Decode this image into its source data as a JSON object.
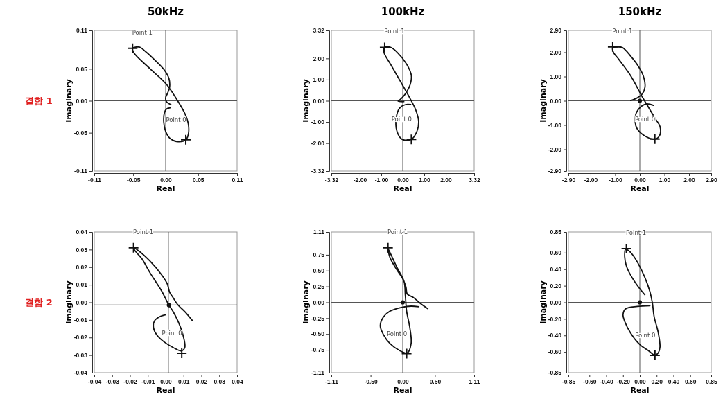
{
  "chart_data": [
    {
      "type": "line",
      "title": "50kHz",
      "xlabel": "Real",
      "ylabel": "Imaginary",
      "annotations": [
        "결함 1",
        {
          "text": "Point 1",
          "x": -0.051,
          "y": 0.082
        },
        {
          "text": "Point 0",
          "x": 0.031,
          "y": -0.061
        }
      ],
      "xlim": [
        -0.11,
        0.11
      ],
      "ylim": [
        -0.11,
        0.11
      ],
      "xticks": [
        -0.11,
        -0.05,
        {
          "value": 0,
          "label": "0.00"
        },
        0.05,
        0.11
      ],
      "yticks": [
        -0.11,
        -0.05,
        {
          "value": 0,
          "label": "0.00"
        },
        0.05,
        0.11
      ],
      "ref_lines": [
        {
          "axis": "x",
          "value": 0,
          "color": "#555555"
        },
        {
          "axis": "y",
          "value": 0,
          "color": "#555555"
        }
      ],
      "series": [
        {
          "type": "line",
          "color": "#111111",
          "x": [
            0.008,
            0.001,
            0.0,
            0.003,
            0.006,
            0.005,
            -0.002,
            -0.016,
            -0.031,
            -0.041,
            -0.051,
            -0.049,
            -0.024,
            0.001,
            0.019,
            0.03,
            0.035,
            0.035,
            0.031,
            0.019,
            0.007,
            0.0,
            -0.003,
            -0.002,
            0.001,
            0.007
          ],
          "values": [
            -0.006,
            -0.001,
            0.005,
            0.012,
            0.021,
            0.035,
            0.048,
            0.063,
            0.077,
            0.084,
            0.082,
            0.075,
            0.05,
            0.026,
            -0.001,
            -0.021,
            -0.037,
            -0.052,
            -0.061,
            -0.064,
            -0.059,
            -0.048,
            -0.033,
            -0.019,
            -0.013,
            -0.011
          ]
        },
        {
          "type": "scatter",
          "marker": "cross",
          "color": "#111111",
          "x": [
            -0.051,
            0.031
          ],
          "values": [
            0.082,
            -0.061
          ]
        }
      ]
    },
    {
      "type": "line",
      "title": "100kHz",
      "xlabel": "Real",
      "ylabel": "Imaginary",
      "annotations": [
        {
          "text": "Point 1",
          "x": -0.84,
          "y": 2.52
        },
        {
          "text": "Point 0",
          "x": 0.4,
          "y": -1.82
        }
      ],
      "xlim": [
        -3.32,
        3.32
      ],
      "ylim": [
        -3.32,
        3.32
      ],
      "xticks": [
        -3.32,
        {
          "value": -2,
          "label": "-2.00"
        },
        {
          "value": -1,
          "label": "-1.00"
        },
        {
          "value": 0,
          "label": "0.00"
        },
        {
          "value": 1,
          "label": "1.00"
        },
        {
          "value": 2,
          "label": "2.00"
        },
        3.32
      ],
      "yticks": [
        -3.32,
        {
          "value": -2,
          "label": "-2.00"
        },
        {
          "value": -1,
          "label": "-1.00"
        },
        {
          "value": 0,
          "label": "0.00"
        },
        {
          "value": 1,
          "label": "1.00"
        },
        {
          "value": 2,
          "label": "2.00"
        },
        3.32
      ],
      "ref_lines": [
        {
          "axis": "x",
          "value": 0,
          "color": "#555555"
        },
        {
          "axis": "y",
          "value": 0,
          "color": "#555555"
        }
      ],
      "series": [
        {
          "type": "line",
          "color": "#111111",
          "x": [
            0.37,
            0.13,
            -0.14,
            -0.3,
            -0.27,
            -0.03,
            0.4,
            0.66,
            0.74,
            0.61,
            0.29,
            -0.14,
            -0.57,
            -0.87,
            -0.84,
            -0.57,
            -0.25,
            0.18,
            0.4,
            0.34,
            0.18,
            0.02,
            -0.14,
            -0.22,
            0.05
          ],
          "values": [
            -0.18,
            -0.18,
            -0.34,
            -0.78,
            -1.44,
            -1.82,
            -1.82,
            -1.44,
            -1.0,
            -0.45,
            0.2,
            0.97,
            1.73,
            2.28,
            2.52,
            2.52,
            2.28,
            1.73,
            1.19,
            0.75,
            0.42,
            0.2,
            0.04,
            -0.02,
            -0.04
          ]
        },
        {
          "type": "scatter",
          "marker": "cross",
          "color": "#111111",
          "x": [
            -0.84,
            0.4
          ],
          "values": [
            2.52,
            -1.82
          ]
        }
      ]
    },
    {
      "type": "line",
      "title": "150kHz",
      "xlabel": "Real",
      "ylabel": "Imaginary",
      "annotations": [
        {
          "text": "Point 1",
          "x": -1.1,
          "y": 2.22
        },
        {
          "text": "Point 0",
          "x": 0.61,
          "y": -1.58
        }
      ],
      "xlim": [
        -2.9,
        2.9
      ],
      "ylim": [
        -2.9,
        2.9
      ],
      "xticks": [
        {
          "value": -2.9,
          "label": "-2.90"
        },
        {
          "value": -2,
          "label": "-2.00"
        },
        {
          "value": -1,
          "label": "-1.00"
        },
        {
          "value": 0,
          "label": "0.00"
        },
        {
          "value": 1,
          "label": "1.00"
        },
        {
          "value": 2,
          "label": "2.00"
        },
        {
          "value": 2.9,
          "label": "2.90"
        }
      ],
      "yticks": [
        {
          "value": -2.9,
          "label": "-2.90"
        },
        {
          "value": -2,
          "label": "-2.00"
        },
        {
          "value": -1,
          "label": "-1.00"
        },
        {
          "value": 0,
          "label": "0.00"
        },
        {
          "value": 1,
          "label": "1.00"
        },
        {
          "value": 2,
          "label": "2.00"
        },
        {
          "value": 2.9,
          "label": "2.90"
        }
      ],
      "ref_lines": [
        {
          "axis": "x",
          "value": 0,
          "color": "#555555"
        },
        {
          "axis": "y",
          "value": 0,
          "color": "#555555"
        }
      ],
      "series": [
        {
          "type": "line",
          "color": "#111111",
          "x": [
            0.56,
            0.28,
            0.07,
            -0.14,
            -0.19,
            -0.11,
            0.19,
            0.61,
            0.8,
            0.82,
            0.65,
            0.37,
            0.09,
            -0.37,
            -0.84,
            -1.08,
            -1.1,
            -0.94,
            -0.7,
            -0.37,
            -0.05,
            0.14,
            0.21,
            0.09,
            -0.09,
            -0.37
          ],
          "values": [
            -0.19,
            -0.13,
            -0.22,
            -0.49,
            -0.87,
            -1.15,
            -1.44,
            -1.58,
            -1.44,
            -1.06,
            -0.77,
            -0.3,
            0.18,
            1.03,
            1.69,
            2.02,
            2.19,
            2.22,
            2.19,
            1.84,
            1.41,
            1.03,
            0.56,
            0.27,
            0.13,
            0.01
          ]
        },
        {
          "type": "scatter",
          "marker": "cross",
          "color": "#111111",
          "x": [
            -1.1,
            0.61
          ],
          "values": [
            2.22,
            -1.58
          ]
        },
        {
          "type": "scatter",
          "marker": "circle",
          "color": "#111111",
          "x": [
            0
          ],
          "values": [
            0
          ]
        }
      ]
    },
    {
      "type": "line",
      "xlabel": "Real",
      "ylabel": "Imaginary",
      "annotations": [
        "결함 2",
        {
          "text": "Point 1",
          "x": -0.018,
          "y": 0.031
        },
        {
          "text": "Point 0",
          "x": 0.009,
          "y": -0.029
        }
      ],
      "xlim": [
        -0.04,
        0.04
      ],
      "ylim": [
        -0.04,
        0.04
      ],
      "xticks": [
        -0.04,
        -0.03,
        -0.02,
        -0.01,
        {
          "value": 0,
          "label": "0.00"
        },
        0.01,
        0.02,
        0.03,
        0.04
      ],
      "yticks": [
        -0.04,
        -0.03,
        -0.02,
        -0.01,
        {
          "value": 0,
          "label": "0.00"
        },
        0.01,
        0.02,
        0.03,
        0.04
      ],
      "ref_lines": [
        {
          "axis": "x",
          "value": 0.0015,
          "color": "#333333"
        },
        {
          "axis": "y",
          "value": -0.0015,
          "color": "#333333"
        }
      ],
      "series": [
        {
          "type": "line",
          "color": "#111111",
          "x": [
            0.0,
            -0.003,
            -0.0063,
            -0.0068,
            -0.005,
            -0.001,
            0.0042,
            0.0087,
            0.0107,
            0.01,
            0.0074,
            0.0042,
            0.0018,
            -0.0023,
            -0.0089,
            -0.0134,
            -0.0173,
            -0.0177,
            -0.0154,
            -0.0089,
            -0.0023,
            0.0009,
            0.0022,
            0.0042,
            0.0068,
            0.0107,
            0.0149
          ],
          "values": [
            -0.007,
            -0.008,
            -0.0106,
            -0.0145,
            -0.0185,
            -0.0224,
            -0.0257,
            -0.0276,
            -0.0257,
            -0.0198,
            -0.0119,
            -0.0053,
            -0.0016,
            0.0065,
            0.017,
            0.0249,
            0.0295,
            0.0308,
            0.0295,
            0.0236,
            0.0157,
            0.0105,
            0.0058,
            0.0026,
            -0.0014,
            -0.0053,
            -0.0103
          ]
        },
        {
          "type": "scatter",
          "marker": "cross",
          "color": "#111111",
          "x": [
            -0.018,
            0.009
          ],
          "values": [
            0.031,
            -0.029
          ]
        },
        {
          "type": "scatter",
          "marker": "circle",
          "color": "#111111",
          "x": [
            0.0018
          ],
          "values": [
            -0.0016
          ]
        }
      ]
    },
    {
      "type": "line",
      "xlabel": "Real",
      "ylabel": "Imaginary",
      "annotations": [
        {
          "text": "Point 1",
          "x": -0.23,
          "y": 0.86
        },
        {
          "text": "Point 0",
          "x": 0.06,
          "y": -0.81
        }
      ],
      "xlim": [
        -1.11,
        1.11
      ],
      "ylim": [
        -1.11,
        1.11
      ],
      "xticks": [
        -1.11,
        {
          "value": -0.5,
          "label": "-0.50"
        },
        {
          "value": 0,
          "label": "0.00"
        },
        {
          "value": 0.5,
          "label": "0.50"
        },
        1.11
      ],
      "yticks": [
        -1.11,
        -0.75,
        {
          "value": -0.5,
          "label": "-0.50"
        },
        -0.25,
        {
          "value": 0,
          "label": "0.00"
        },
        0.25,
        {
          "value": 0.5,
          "label": "0.50"
        },
        0.75,
        1.11
      ],
      "ref_lines": [
        {
          "axis": "x",
          "value": 0,
          "color": "#555555"
        },
        {
          "axis": "y",
          "value": 0,
          "color": "#555555"
        }
      ],
      "series": [
        {
          "type": "line",
          "color": "#111111",
          "x": [
            0.39,
            0.29,
            0.16,
            0.07,
            0.05,
            0.0,
            -0.09,
            -0.2,
            -0.23,
            -0.21,
            -0.09,
            0.02,
            0.04,
            0.06,
            0.11,
            0.13,
            0.07,
            -0.05,
            -0.2,
            -0.3,
            -0.35,
            -0.3,
            -0.2,
            -0.02,
            0.13,
            0.25
          ],
          "values": [
            -0.1,
            -0.03,
            0.08,
            0.13,
            0.24,
            0.37,
            0.51,
            0.71,
            0.85,
            0.81,
            0.55,
            0.33,
            0.11,
            -0.14,
            -0.4,
            -0.65,
            -0.8,
            -0.76,
            -0.65,
            -0.51,
            -0.37,
            -0.23,
            -0.14,
            -0.08,
            -0.06,
            -0.07
          ]
        },
        {
          "type": "scatter",
          "marker": "cross",
          "color": "#111111",
          "x": [
            -0.23,
            0.06
          ],
          "values": [
            0.86,
            -0.81
          ]
        },
        {
          "type": "scatter",
          "marker": "circle",
          "color": "#111111",
          "x": [
            0
          ],
          "values": [
            0
          ]
        }
      ]
    },
    {
      "type": "line",
      "xlabel": "Real",
      "ylabel": "Imaginary",
      "annotations": [
        {
          "text": "Point 1",
          "x": -0.16,
          "y": 0.65
        },
        {
          "text": "Point 0",
          "x": 0.18,
          "y": -0.64
        }
      ],
      "xlim": [
        -0.85,
        0.85
      ],
      "ylim": [
        -0.85,
        0.85
      ],
      "xticks": [
        -0.85,
        {
          "value": -0.6,
          "label": "-0.60"
        },
        {
          "value": -0.4,
          "label": "-0.40"
        },
        {
          "value": -0.2,
          "label": "-0.20"
        },
        {
          "value": 0,
          "label": "0.00"
        },
        {
          "value": 0.2,
          "label": "0.20"
        },
        {
          "value": 0.4,
          "label": "0.40"
        },
        {
          "value": 0.6,
          "label": "0.60"
        },
        0.85
      ],
      "yticks": [
        -0.85,
        {
          "value": -0.6,
          "label": "-0.60"
        },
        {
          "value": -0.4,
          "label": "-0.40"
        },
        {
          "value": -0.2,
          "label": "-0.20"
        },
        {
          "value": 0,
          "label": "0.00"
        },
        {
          "value": 0.2,
          "label": "0.20"
        },
        {
          "value": 0.4,
          "label": "0.40"
        },
        {
          "value": 0.6,
          "label": "0.60"
        },
        0.85
      ],
      "ref_lines": [
        {
          "axis": "x",
          "value": 0,
          "color": "#555555"
        },
        {
          "axis": "y",
          "value": 0,
          "color": "#555555"
        }
      ],
      "series": [
        {
          "type": "line",
          "color": "#111111",
          "x": [
            0.06,
            -0.02,
            -0.11,
            -0.16,
            -0.18,
            -0.17,
            -0.14,
            -0.09,
            -0.02,
            0.06,
            0.12,
            0.15,
            0.17,
            0.22,
            0.24,
            0.22,
            0.18,
            0.11,
            0.0,
            -0.11,
            -0.18,
            -0.2,
            -0.17,
            -0.03,
            0.12
          ],
          "values": [
            0.09,
            0.19,
            0.33,
            0.44,
            0.55,
            0.64,
            0.63,
            0.58,
            0.47,
            0.3,
            0.13,
            -0.01,
            -0.17,
            -0.37,
            -0.54,
            -0.61,
            -0.64,
            -0.59,
            -0.51,
            -0.37,
            -0.23,
            -0.15,
            -0.08,
            -0.05,
            -0.04
          ]
        },
        {
          "type": "scatter",
          "marker": "cross",
          "color": "#111111",
          "x": [
            -0.16,
            0.18
          ],
          "values": [
            0.65,
            -0.64
          ]
        },
        {
          "type": "scatter",
          "marker": "circle",
          "color": "#111111",
          "x": [
            0
          ],
          "values": [
            0
          ]
        }
      ]
    }
  ]
}
